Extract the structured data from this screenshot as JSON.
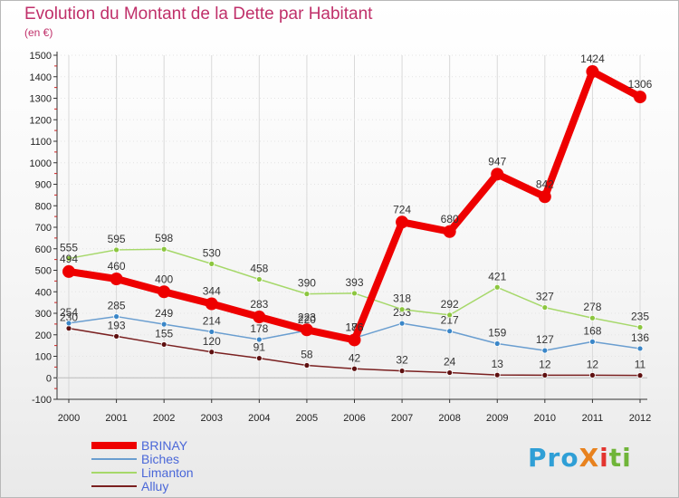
{
  "header": {
    "title": "Evolution du Montant de la Dette par Habitant",
    "subtitle": "(en €)"
  },
  "logo": {
    "text": "ProXiti",
    "parts": [
      "Pro",
      "X",
      "i",
      "ti"
    ]
  },
  "colors": {
    "title": "#c0306a",
    "axis": "#333333",
    "grid": "#d9d9d9",
    "legend_text": "#4a67d8"
  },
  "chart_data": {
    "type": "line",
    "title": "Evolution du Montant de la Dette par Habitant",
    "subtitle": "(en €)",
    "xlabel": "",
    "ylabel": "",
    "categories": [
      "2000",
      "2001",
      "2002",
      "2003",
      "2004",
      "2005",
      "2006",
      "2007",
      "2008",
      "2009",
      "2010",
      "2011",
      "2012"
    ],
    "ylim": [
      -100,
      1500
    ],
    "yticks": [
      -100,
      0,
      100,
      200,
      300,
      400,
      500,
      600,
      700,
      800,
      900,
      1000,
      1100,
      1200,
      1300,
      1400,
      1500
    ],
    "grid": false,
    "legend": "bottom-left",
    "series": [
      {
        "name": "Alluy",
        "color": "#7a2020",
        "marker": "#5e1010",
        "values": [
          230,
          193,
          155,
          120,
          91,
          58,
          42,
          32,
          24,
          13,
          12,
          12,
          11
        ]
      },
      {
        "name": "Biches",
        "color": "#6a9ed0",
        "marker": "#3a86c8",
        "values": [
          254,
          285,
          249,
          214,
          178,
          220,
          185,
          253,
          217,
          159,
          127,
          168,
          136
        ]
      },
      {
        "name": "Limanton",
        "color": "#a6d86a",
        "marker": "#8cc63f",
        "values": [
          555,
          595,
          598,
          530,
          458,
          390,
          393,
          318,
          292,
          421,
          327,
          278,
          235
        ]
      },
      {
        "name": "BRINAY",
        "color": "#ee0000",
        "marker": "#ee0000",
        "values": [
          494,
          460,
          400,
          344,
          283,
          223,
          176,
          724,
          680,
          947,
          842,
          1424,
          1306
        ]
      }
    ]
  },
  "legend_order": [
    "BRINAY",
    "Biches",
    "Limanton",
    "Alluy"
  ]
}
